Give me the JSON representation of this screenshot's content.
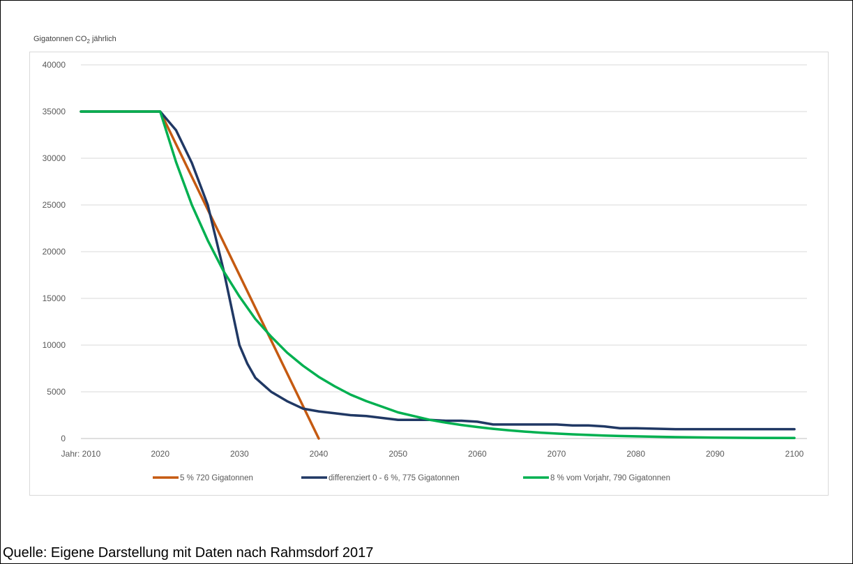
{
  "chart_data": {
    "type": "line",
    "ylabel_prefix": "Gigatonnen CO",
    "ylabel_sub": "2",
    "ylabel_suffix": "jährlich",
    "ylim": [
      0,
      40000
    ],
    "xlim": [
      2010,
      2100
    ],
    "y_ticks": [
      "0",
      "5000",
      "10000",
      "15000",
      "20000",
      "25000",
      "30000",
      "35000",
      "40000"
    ],
    "x_ticks": [
      {
        "label": "Jahr: 2010",
        "x": 2010
      },
      {
        "label": "2020",
        "x": 2020
      },
      {
        "label": "2030",
        "x": 2030
      },
      {
        "label": "2040",
        "x": 2040
      },
      {
        "label": "2050",
        "x": 2050
      },
      {
        "label": "2060",
        "x": 2060
      },
      {
        "label": "2070",
        "x": 2070
      },
      {
        "label": "2080",
        "x": 2080
      },
      {
        "label": "2090",
        "x": 2090
      },
      {
        "label": "2100",
        "x": 2100
      }
    ],
    "grid": true,
    "legend_position": "bottom",
    "series": [
      {
        "name": "5 % 720 Gigatonnen",
        "color": "#c55a11",
        "x": [
          2010,
          2020,
          2040
        ],
        "y": [
          35000,
          35000,
          0
        ]
      },
      {
        "name": "differenziert 0 - 6 %, 775 Gigatonnen",
        "color": "#203864",
        "x": [
          2010,
          2020,
          2022,
          2024,
          2026,
          2028,
          2030,
          2031,
          2032,
          2034,
          2036,
          2038,
          2040,
          2042,
          2044,
          2046,
          2048,
          2050,
          2052,
          2054,
          2056,
          2058,
          2060,
          2062,
          2064,
          2066,
          2068,
          2070,
          2072,
          2074,
          2076,
          2078,
          2080,
          2085,
          2090,
          2095,
          2100
        ],
        "y": [
          35000,
          35000,
          33000,
          29500,
          25000,
          18000,
          10000,
          8000,
          6500,
          5000,
          4000,
          3200,
          2900,
          2700,
          2500,
          2400,
          2200,
          2000,
          2000,
          2000,
          1900,
          1900,
          1800,
          1500,
          1500,
          1500,
          1500,
          1500,
          1400,
          1400,
          1300,
          1100,
          1100,
          1000,
          1000,
          1000,
          1000
        ]
      },
      {
        "name": "8 % vom Vorjahr, 790 Gigatonnen",
        "color": "#00b050",
        "x": [
          2010,
          2020,
          2022,
          2024,
          2026,
          2028,
          2030,
          2032,
          2034,
          2036,
          2038,
          2040,
          2042,
          2044,
          2046,
          2048,
          2050,
          2052,
          2054,
          2056,
          2058,
          2060,
          2062,
          2064,
          2066,
          2068,
          2070,
          2072,
          2074,
          2076,
          2078,
          2080,
          2085,
          2090,
          2095,
          2100
        ],
        "y": [
          35000,
          35000,
          29600,
          25000,
          21200,
          17900,
          15200,
          12800,
          10900,
          9200,
          7800,
          6600,
          5600,
          4700,
          4000,
          3400,
          2800,
          2400,
          2000,
          1700,
          1450,
          1230,
          1040,
          880,
          740,
          630,
          530,
          450,
          380,
          320,
          270,
          230,
          150,
          100,
          70,
          50
        ]
      }
    ]
  },
  "source_text": "Quelle: Eigene Darstellung mit Daten nach Rahmsdorf 2017"
}
